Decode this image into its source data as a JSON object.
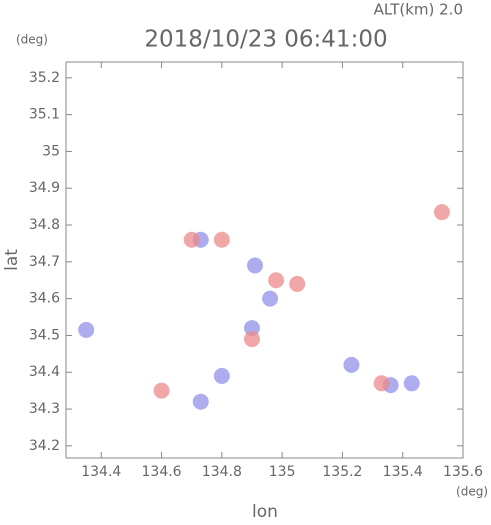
{
  "chart_data": {
    "type": "scatter",
    "top_label": "ALT(km) 2.0",
    "title": "2018/10/23 06:41:00",
    "y_unit": "(deg)",
    "ylabel": "lat",
    "x_unit": "(deg)",
    "xlabel": "lon",
    "xlim": [
      134.283,
      135.6
    ],
    "ylim": [
      34.167,
      35.243
    ],
    "xticks": [
      134.4,
      134.6,
      134.8,
      135.0,
      135.2,
      135.4,
      135.6
    ],
    "yticks": [
      34.2,
      34.3,
      34.4,
      34.5,
      34.6,
      34.7,
      34.8,
      34.9,
      35.0,
      35.1,
      35.2
    ],
    "series": [
      {
        "color": "#9090e8",
        "x": [
          134.35,
          134.73,
          134.8,
          134.9,
          134.96,
          135.36,
          135.43,
          134.73,
          134.91,
          135.23
        ],
        "values": [
          34.515,
          34.32,
          34.39,
          34.52,
          34.6,
          34.365,
          34.37,
          34.76,
          34.69,
          34.42
        ]
      },
      {
        "color": "#ec8a8a",
        "x": [
          135.33,
          134.98,
          134.8,
          135.53,
          134.6,
          134.9,
          135.05,
          134.7
        ],
        "values": [
          34.37,
          34.65,
          34.76,
          34.835,
          34.35,
          34.49,
          34.64,
          34.76
        ]
      }
    ]
  }
}
